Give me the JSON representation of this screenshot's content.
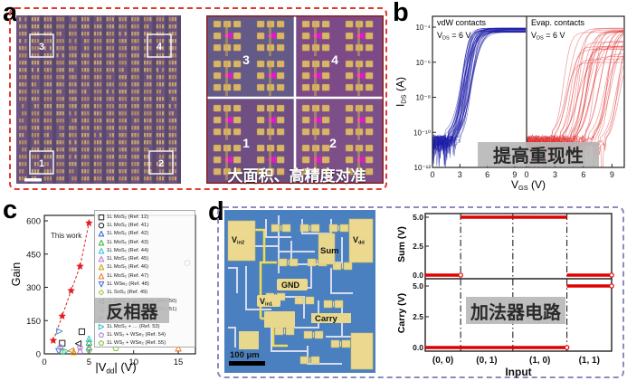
{
  "figure_title": "Device figure panels a-d",
  "colors": {
    "panel_a_border": "#e23b2e",
    "panel_d_border": "#8a8dbd",
    "vdw_blue": "#1c1ca8",
    "evap_red": "#e03030",
    "star_red": "#e02020",
    "overlay_gray": "#b8b8b8",
    "micrograph_blue": "#4a80bf",
    "pad_yellow": "#ecd98f",
    "array_purple": "#6d5380",
    "magenta_device": "#e318c8"
  },
  "panel_a": {
    "label": "a",
    "array_image": {
      "roi_labels": [
        "3",
        "4",
        "1",
        "2"
      ]
    },
    "zoom_image": {
      "quadrant_labels": [
        "3",
        "4",
        "1",
        "2"
      ]
    },
    "overlay_caption": "大面积、高精度对准"
  },
  "panel_b": {
    "label": "b",
    "subpanels": [
      {
        "title": "vdW contacts",
        "bias": {
          "pre": "V",
          "sub": "DS",
          "post": " = 6 V"
        },
        "color": "#1c1ca8",
        "n_curves": 36,
        "vth_min": 1.9,
        "vth_max": 3.3,
        "spread": "tight"
      },
      {
        "title": "Evap. contacts",
        "bias": {
          "pre": "V",
          "sub": "DS",
          "post": " = 6 V"
        },
        "color": "#e03030",
        "n_curves": 36,
        "vth_min": 2.2,
        "vth_max": 8.8,
        "spread": "wide"
      }
    ],
    "ylabel": {
      "pre": "I",
      "sub": "DS",
      "post": " (A)"
    },
    "xlabel": {
      "pre": "V",
      "sub": "GS",
      "post": " (V)"
    },
    "y_tick_labels": [
      "10⁻⁴",
      "10⁻⁶",
      "10⁻⁸",
      "10⁻¹⁰",
      "10⁻¹²"
    ],
    "y_tick_exponents": [
      -4,
      -6,
      -8,
      -10,
      -12
    ],
    "x_ticks": [
      0,
      3,
      6,
      9
    ],
    "x_max": 10.3,
    "overlay_caption": "提高重现性"
  },
  "panel_c": {
    "label": "c",
    "ylabel": "Gain",
    "xlabel": {
      "pre": "|V",
      "sub": "dd",
      "post": "| (V)"
    },
    "y_ticks": [
      0,
      150,
      300,
      450,
      600
    ],
    "x_ticks": [
      0,
      5,
      10,
      15
    ],
    "this_work": {
      "label": "This work",
      "x": [
        1,
        2,
        3,
        4,
        5
      ],
      "gain": [
        60,
        170,
        285,
        395,
        590
      ]
    },
    "overlay_caption": "反相器",
    "legend": [
      {
        "marker": "square",
        "color": "#222222",
        "label": "1L MoS₂ (Ref. 12)"
      },
      {
        "marker": "circle",
        "color": "#222222",
        "label": "1L MoS₂ (Ref. 41)"
      },
      {
        "marker": "tri-up",
        "color": "#2b5fd9",
        "label": "1L MoS₂ (Ref. 42)"
      },
      {
        "marker": "tri-up",
        "color": "#35b335",
        "label": "1L MoS₂ (Ref. 43)"
      },
      {
        "marker": "tri-up",
        "color": "#29c5d6",
        "label": "1L MoS₂ (Ref. 44)"
      },
      {
        "marker": "tri-up",
        "color": "#b57bd6",
        "label": "1L MoS₂ (Ref. 45)"
      },
      {
        "marker": "tri-up",
        "color": "#c8a000",
        "label": "1L MoS₂ (Ref. 46)"
      },
      {
        "marker": "tri-up",
        "color": "#f07820",
        "label": "1L MoS₂ (Ref. 47)"
      },
      {
        "marker": "tri-down",
        "color": "#3a6fd8",
        "label": "1L WSe₂ (Ref. 48)"
      },
      {
        "marker": "diamond",
        "color": "#9acd32",
        "label": "1L SnS₂ (Ref. 49)"
      },
      {
        "marker": "tri-left",
        "color": "#222222",
        "label": "1L MoS₂ + graphene (Ref. 50)"
      },
      {
        "marker": "tri-left",
        "color": "#f07820",
        "label": "1L MoS₂ + graphene (Ref. 51)"
      },
      {
        "marker": "tri-right",
        "color": "#4a90d9",
        "label": "1L MoS₂ + … (Ref. 52)"
      },
      {
        "marker": "tri-right",
        "color": "#30c0c0",
        "label": "1L MoS₂ + … (Ref. 53)"
      },
      {
        "marker": "pentagon",
        "color": "#b07fd9",
        "label": "1L WS₂ + WSe₂ (Ref. 54)"
      },
      {
        "marker": "pentagon",
        "color": "#7ac143",
        "label": "1L WS₂ + WSe₂ (Ref. 55)"
      }
    ],
    "points": [
      {
        "marker": "square",
        "color": "#222222",
        "x": 2.0,
        "y": 48
      },
      {
        "marker": "square",
        "color": "#222222",
        "x": 4.2,
        "y": 100
      },
      {
        "marker": "circle",
        "color": "#222222",
        "x": 16.0,
        "y": 410
      },
      {
        "marker": "tri-up",
        "color": "#2b5fd9",
        "x": 5.0,
        "y": 30
      },
      {
        "marker": "tri-up",
        "color": "#35b335",
        "x": 5.0,
        "y": 52
      },
      {
        "marker": "tri-up",
        "color": "#29c5d6",
        "x": 5.0,
        "y": 68
      },
      {
        "marker": "tri-up",
        "color": "#b57bd6",
        "x": 4.0,
        "y": 15
      },
      {
        "marker": "tri-up",
        "color": "#c8a000",
        "x": 3.3,
        "y": 9
      },
      {
        "marker": "tri-up",
        "color": "#f07820",
        "x": 15.0,
        "y": 25
      },
      {
        "marker": "tri-down",
        "color": "#3a6fd8",
        "x": 1.6,
        "y": 12
      },
      {
        "marker": "diamond",
        "color": "#9acd32",
        "x": 2.1,
        "y": 8
      },
      {
        "marker": "tri-left",
        "color": "#222222",
        "x": 3.8,
        "y": 46
      },
      {
        "marker": "tri-left",
        "color": "#f07820",
        "x": 3.0,
        "y": 14
      },
      {
        "marker": "tri-right",
        "color": "#4a90d9",
        "x": 1.7,
        "y": 102
      },
      {
        "marker": "tri-right",
        "color": "#30c0c0",
        "x": 2.4,
        "y": 12
      },
      {
        "marker": "pentagon",
        "color": "#b07fd9",
        "x": 1.8,
        "y": 30
      },
      {
        "marker": "pentagon",
        "color": "#b07fd9",
        "x": 4.0,
        "y": 28
      },
      {
        "marker": "pentagon",
        "color": "#7ac143",
        "x": 8.0,
        "y": 25
      },
      {
        "marker": "pentagon",
        "color": "#7ac143",
        "x": 5.0,
        "y": 18
      }
    ]
  },
  "panel_d": {
    "label": "d",
    "micrograph": {
      "labels": {
        "vin2": {
          "pre": "V",
          "sub": "in2"
        },
        "vdd": {
          "pre": "V",
          "sub": "dd"
        },
        "vin1": {
          "pre": "V",
          "sub": "in1"
        },
        "gnd": "GND",
        "sum": "Sum",
        "carry": "Carry"
      },
      "scale_bar": "100 μm"
    },
    "plot": {
      "sum_ylabel": "Sum (V)",
      "carry_ylabel": "Carry (V)",
      "xlabel": "Input",
      "y_tick_labels": [
        "5.0",
        "2.5",
        "0.0"
      ],
      "input_labels": [
        "(0, 0)",
        "(0, 1)",
        "(1, 0)",
        "(1, 1)"
      ],
      "sum_values": [
        0,
        5,
        5,
        0
      ],
      "carry_values": [
        0,
        0,
        0,
        5
      ],
      "region_fracs": [
        0,
        0.19,
        0.47,
        0.76,
        1
      ],
      "overlay_caption": "加法器电路"
    }
  },
  "chart_data": [
    {
      "type": "line",
      "panel": "b",
      "yscale": "log",
      "xlabel": "V_GS (V)",
      "ylabel": "I_DS (A)",
      "xlim": [
        0,
        10.3
      ],
      "ylim_A": [
        1e-12,
        0.0001
      ],
      "x_ticks": [
        0,
        3,
        6,
        9
      ],
      "y_ticks_A": [
        0.0001,
        1e-06,
        1e-08,
        1e-10,
        1e-12
      ],
      "subplots": [
        {
          "label": "vdW contacts",
          "bias": "V_DS = 6 V",
          "color": "blue",
          "n_curves": 36,
          "vth_spread_V": [
            1.9,
            3.3
          ],
          "on_current_A": 0.0001,
          "off_current_A": 1e-10
        },
        {
          "label": "Evap. contacts",
          "bias": "V_DS = 6 V",
          "color": "red",
          "n_curves": 36,
          "vth_spread_V": [
            2.2,
            8.8
          ],
          "on_current_A": 0.0001,
          "off_current_A": 1e-10
        }
      ]
    },
    {
      "type": "scatter",
      "panel": "c",
      "xlabel": "|V_dd| (V)",
      "ylabel": "Gain",
      "xlim": [
        0,
        17
      ],
      "ylim": [
        0,
        620
      ],
      "series": [
        {
          "name": "This work",
          "marker": "star",
          "color": "#e02020",
          "line": "dashed",
          "x": [
            1,
            2,
            3,
            4,
            5
          ],
          "y": [
            60,
            170,
            285,
            395,
            590
          ]
        },
        {
          "name": "literature references 12, 41-55",
          "note": "see panel_c.points for values"
        }
      ],
      "legend_position": "upper right"
    },
    {
      "type": "line",
      "panel": "d",
      "xlabel": "Input",
      "categories": [
        "(0, 0)",
        "(0, 1)",
        "(1, 0)",
        "(1, 1)"
      ],
      "series": [
        {
          "name": "Sum (V)",
          "values": [
            0,
            5,
            5,
            0
          ]
        },
        {
          "name": "Carry (V)",
          "values": [
            0,
            0,
            0,
            5
          ]
        }
      ],
      "ylim": [
        0,
        5
      ]
    }
  ]
}
